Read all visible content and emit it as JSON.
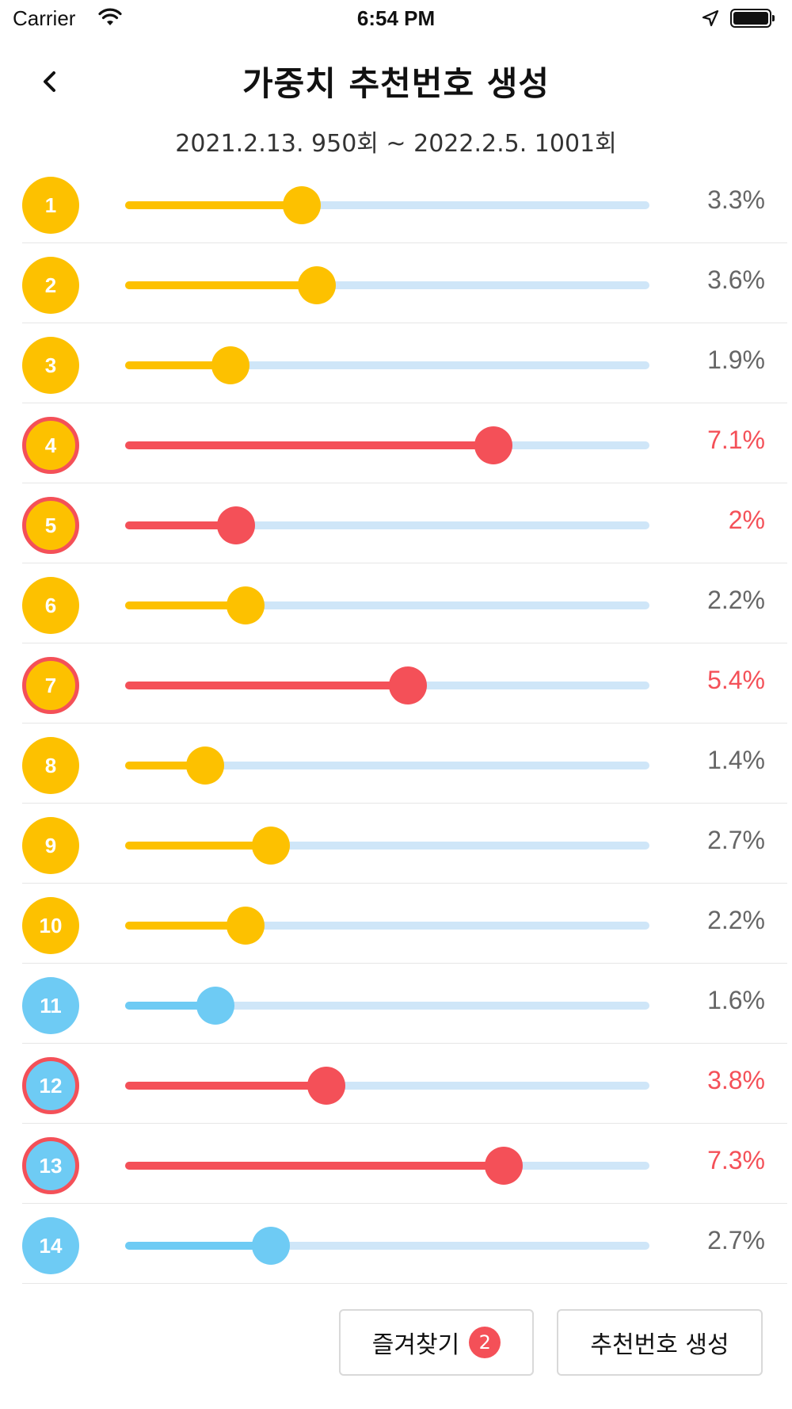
{
  "status_bar": {
    "carrier": "Carrier",
    "time": "6:54 PM",
    "icons": [
      "wifi-icon",
      "location-arrow-icon",
      "battery-icon"
    ]
  },
  "header": {
    "back_icon": "chevron-left-icon",
    "title": "가중치 추천번호 생성",
    "date_range": "2021.2.13. 950회 ~ 2022.2.5. 1001회"
  },
  "colors": {
    "yellow": "#FDC100",
    "blue": "#6ECBF4",
    "red": "#F45058",
    "track": "#CFE6F8",
    "gray_text": "#666666"
  },
  "rows": [
    {
      "number": "1",
      "percent_label": "3.3%",
      "value": 3.3,
      "ball_color": "yellow",
      "selected": false
    },
    {
      "number": "2",
      "percent_label": "3.6%",
      "value": 3.6,
      "ball_color": "yellow",
      "selected": false
    },
    {
      "number": "3",
      "percent_label": "1.9%",
      "value": 1.9,
      "ball_color": "yellow",
      "selected": false
    },
    {
      "number": "4",
      "percent_label": "7.1%",
      "value": 7.1,
      "ball_color": "yellow",
      "selected": true
    },
    {
      "number": "5",
      "percent_label": "2%",
      "value": 2.0,
      "ball_color": "yellow",
      "selected": true
    },
    {
      "number": "6",
      "percent_label": "2.2%",
      "value": 2.2,
      "ball_color": "yellow",
      "selected": false
    },
    {
      "number": "7",
      "percent_label": "5.4%",
      "value": 5.4,
      "ball_color": "yellow",
      "selected": true
    },
    {
      "number": "8",
      "percent_label": "1.4%",
      "value": 1.4,
      "ball_color": "yellow",
      "selected": false
    },
    {
      "number": "9",
      "percent_label": "2.7%",
      "value": 2.7,
      "ball_color": "yellow",
      "selected": false
    },
    {
      "number": "10",
      "percent_label": "2.2%",
      "value": 2.2,
      "ball_color": "yellow",
      "selected": false
    },
    {
      "number": "11",
      "percent_label": "1.6%",
      "value": 1.6,
      "ball_color": "blue",
      "selected": false
    },
    {
      "number": "12",
      "percent_label": "3.8%",
      "value": 3.8,
      "ball_color": "blue",
      "selected": true
    },
    {
      "number": "13",
      "percent_label": "7.3%",
      "value": 7.3,
      "ball_color": "blue",
      "selected": true
    },
    {
      "number": "14",
      "percent_label": "2.7%",
      "value": 2.7,
      "ball_color": "blue",
      "selected": false
    }
  ],
  "bottom": {
    "favorites_label": "즐겨찾기",
    "favorites_count": "2",
    "generate_label": "추천번호 생성"
  }
}
